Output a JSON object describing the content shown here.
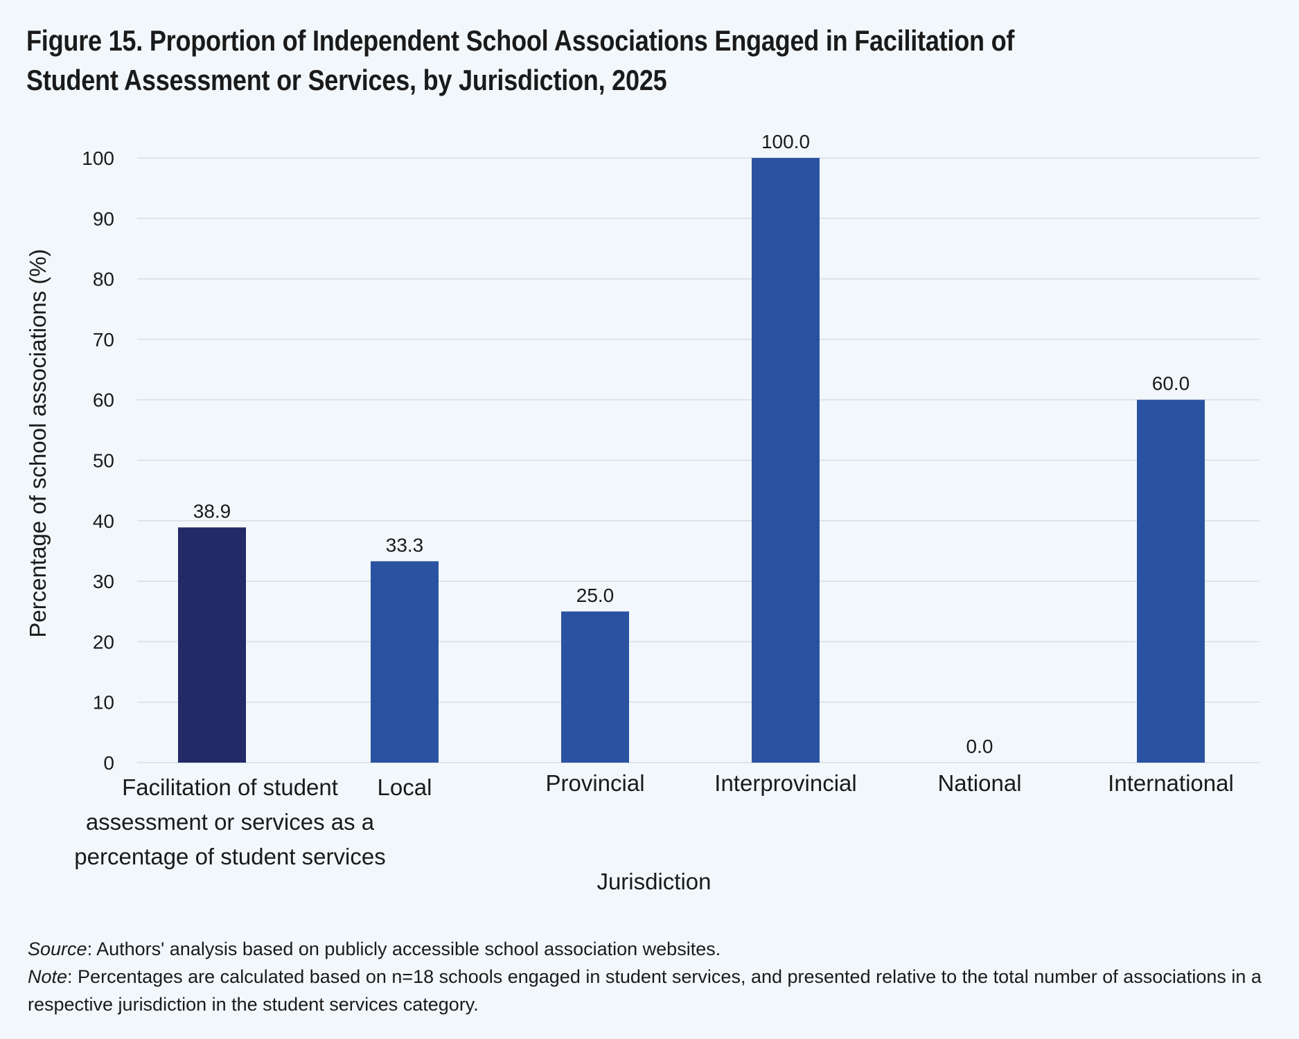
{
  "title": "Figure 15. Proportion of Independent School Associations Engaged in Facilitation of Student Assessment or Services, by Jurisdiction, 2025",
  "chart_data": {
    "type": "bar",
    "categories": [
      "Facilitation of student assessment or services as a percentage of student services",
      "Local",
      "Provincial",
      "Interprovincial",
      "National",
      "International"
    ],
    "values": [
      38.9,
      33.3,
      25.0,
      100.0,
      0.0,
      60.0
    ],
    "value_labels": [
      "38.9",
      "33.3",
      "25.0",
      "100.0",
      "0.0",
      "60.0"
    ],
    "bar_colors": [
      "#232a66",
      "#2a52a1",
      "#2a52a1",
      "#2a52a1",
      "#2a52a1",
      "#2a52a1"
    ],
    "xlabel": "Jurisdiction",
    "ylabel": "Percentage of school associations (%)",
    "ylim": [
      0,
      100
    ],
    "yticks": [
      0,
      10,
      20,
      30,
      40,
      50,
      60,
      70,
      80,
      90,
      100
    ],
    "grid": true,
    "legend": "none"
  },
  "footnotes": {
    "source_label": "Source",
    "source_text": ": Authors' analysis based on publicly accessible school association websites.",
    "note_label": "Note",
    "note_text": ": Percentages are calculated based on n=18 schools engaged in student services, and presented relative to the total number of associations in a respective jurisdiction in the student services category."
  }
}
